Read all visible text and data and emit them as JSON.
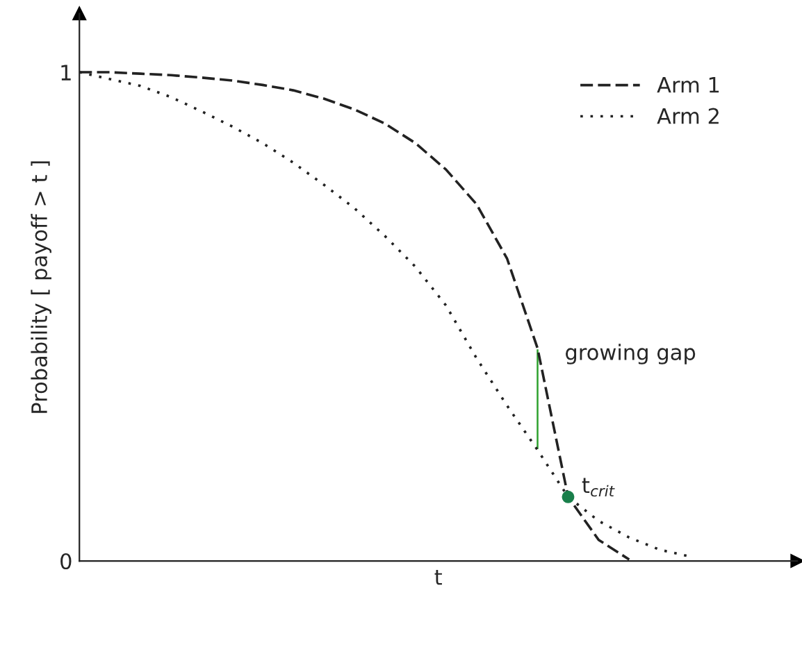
{
  "chart_data": {
    "type": "line",
    "xlabel": "t",
    "ylabel": "Probability [ payoff > t ]",
    "categories": [
      null,
      null,
      null,
      null,
      null,
      null,
      null,
      null,
      null,
      null,
      null,
      null,
      null,
      null,
      null,
      null,
      null,
      null,
      null,
      null,
      null,
      null,
      null,
      null
    ],
    "ylim": [
      0,
      1.12
    ],
    "yticks": [
      0,
      1
    ],
    "grid": false,
    "legend": "top right",
    "series": [
      {
        "name": "Arm 1",
        "line_style": "dashed",
        "color": "#222222",
        "values": [
          1,
          1,
          0.997,
          0.994,
          0.989,
          0.983,
          0.974,
          0.963,
          0.946,
          0.924,
          0.895,
          0.855,
          0.801,
          0.73,
          0.619,
          0.435,
          0.131,
          0.043,
          0.003,
          null,
          null,
          null,
          null,
          null
        ]
      },
      {
        "name": "Arm 2",
        "line_style": "dotted",
        "color": "#222222",
        "values": [
          1,
          0.986,
          0.972,
          0.949,
          0.92,
          0.889,
          0.855,
          0.815,
          0.77,
          0.722,
          0.665,
          0.602,
          0.523,
          0.415,
          0.318,
          0.227,
          0.131,
          0.082,
          0.048,
          0.023,
          0.009,
          null,
          null,
          null
        ]
      },
      {
        "type": "bar",
        "color": "#2ca02c",
        "base": [
          null,
          null,
          null,
          null,
          null,
          null,
          null,
          null,
          null,
          null,
          null,
          null,
          null,
          null,
          null,
          0.227,
          null,
          null,
          null,
          null,
          null,
          null,
          null,
          null
        ],
        "values": [
          null,
          null,
          null,
          null,
          null,
          null,
          null,
          null,
          null,
          null,
          null,
          null,
          null,
          null,
          null,
          0.208,
          null,
          null,
          null,
          null,
          null,
          null,
          null,
          null
        ]
      },
      {
        "type": "scatter",
        "marker": "circle",
        "color": "#1a7f4b",
        "values": [
          null,
          null,
          null,
          null,
          null,
          null,
          null,
          null,
          null,
          null,
          null,
          null,
          null,
          null,
          null,
          null,
          0.131,
          null,
          null,
          null,
          null,
          null,
          null,
          null
        ]
      }
    ],
    "annotations": [
      "growing gap",
      "t$_{crit}$"
    ]
  }
}
